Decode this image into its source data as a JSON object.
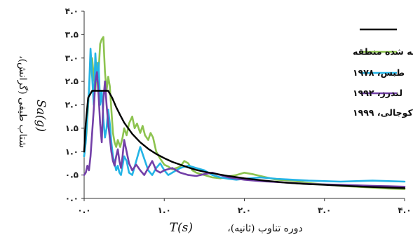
{
  "chart_data": {
    "type": "line",
    "xlabel_sym": "T(s)",
    "xlabel_text": "دوره تناوب (ثانیه)،",
    "ylabel_sym": "Sa(g)",
    "ylabel_text": "شتاب طیفی (گرانش)،",
    "xlim": [
      0,
      4
    ],
    "ylim": [
      0,
      4
    ],
    "x_ticks": [
      0,
      1,
      2,
      3,
      4
    ],
    "x_tick_labels": [
      "۰.۰",
      "۱.۰",
      "۲.۰",
      "۳.۰",
      "۴.۰"
    ],
    "y_ticks": [
      0,
      0.5,
      1,
      1.5,
      2,
      2.5,
      3,
      3.5,
      4
    ],
    "y_tick_labels": [
      "۰.۰",
      "۰.۵",
      "۱.۰",
      "۱.۵",
      "۲.۰",
      "۲.۵",
      "۳.۰",
      "۳.۵",
      "۴.۰"
    ],
    "grid": false,
    "legend_position": "top-right",
    "series": [
      {
        "name": "",
        "color": "#000000",
        "x": [
          0.0,
          0.02,
          0.05,
          0.1,
          0.15,
          0.2,
          0.25,
          0.3,
          0.35,
          0.4,
          0.45,
          0.5,
          0.6,
          0.7,
          0.8,
          0.9,
          1.0,
          1.1,
          1.2,
          1.3,
          1.4,
          1.5,
          1.6,
          1.8,
          2.0,
          2.25,
          2.5,
          2.75,
          3.0,
          3.25,
          3.5,
          3.75,
          4.0
        ],
        "y": [
          1.0,
          1.6,
          2.15,
          2.3,
          2.3,
          2.3,
          2.3,
          2.3,
          2.15,
          1.95,
          1.78,
          1.62,
          1.38,
          1.2,
          1.06,
          0.95,
          0.86,
          0.78,
          0.72,
          0.66,
          0.61,
          0.57,
          0.54,
          0.48,
          0.43,
          0.38,
          0.34,
          0.31,
          0.29,
          0.27,
          0.25,
          0.235,
          0.22
        ]
      },
      {
        "name": "طیف بزرگ‌ترین زلزله در نظر گرفته شده منطقه",
        "color": "#8dc34f",
        "x": [
          0.0,
          0.03,
          0.06,
          0.08,
          0.1,
          0.12,
          0.14,
          0.16,
          0.18,
          0.2,
          0.22,
          0.24,
          0.26,
          0.28,
          0.3,
          0.32,
          0.34,
          0.36,
          0.38,
          0.4,
          0.42,
          0.45,
          0.48,
          0.5,
          0.53,
          0.56,
          0.6,
          0.63,
          0.66,
          0.7,
          0.73,
          0.76,
          0.8,
          0.83,
          0.86,
          0.9,
          0.95,
          1.0,
          1.05,
          1.1,
          1.15,
          1.2,
          1.25,
          1.3,
          1.35,
          1.4,
          1.5,
          1.6,
          1.7,
          1.8,
          1.9,
          2.0,
          2.1,
          2.2,
          2.4,
          2.6,
          2.8,
          3.0,
          3.2,
          3.4,
          3.6,
          3.8,
          4.0
        ],
        "y": [
          0.9,
          1.4,
          2.3,
          2.9,
          3.0,
          2.6,
          2.3,
          2.9,
          2.7,
          3.3,
          3.4,
          3.45,
          2.7,
          2.3,
          2.6,
          2.4,
          1.9,
          1.4,
          1.2,
          1.1,
          1.25,
          1.1,
          1.3,
          1.5,
          1.35,
          1.6,
          1.75,
          1.5,
          1.6,
          1.4,
          1.55,
          1.35,
          1.25,
          1.4,
          1.3,
          1.0,
          0.85,
          0.72,
          0.68,
          0.62,
          0.65,
          0.68,
          0.8,
          0.75,
          0.6,
          0.55,
          0.5,
          0.45,
          0.43,
          0.47,
          0.5,
          0.55,
          0.52,
          0.48,
          0.4,
          0.38,
          0.33,
          0.3,
          0.27,
          0.25,
          0.23,
          0.21,
          0.2
        ]
      },
      {
        "name": "طبس، ۱۹۷۸",
        "color": "#24b4e6",
        "x": [
          0.0,
          0.02,
          0.04,
          0.06,
          0.08,
          0.1,
          0.12,
          0.14,
          0.16,
          0.18,
          0.2,
          0.22,
          0.24,
          0.26,
          0.28,
          0.3,
          0.32,
          0.34,
          0.36,
          0.38,
          0.4,
          0.42,
          0.44,
          0.46,
          0.48,
          0.5,
          0.53,
          0.56,
          0.6,
          0.65,
          0.7,
          0.75,
          0.8,
          0.85,
          0.9,
          0.95,
          1.0,
          1.05,
          1.1,
          1.15,
          1.2,
          1.3,
          1.4,
          1.5,
          1.6,
          1.7,
          1.8,
          1.9,
          2.0,
          2.2,
          2.4,
          2.6,
          2.8,
          3.0,
          3.2,
          3.4,
          3.6,
          3.8,
          4.0
        ],
        "y": [
          0.9,
          1.2,
          1.8,
          2.3,
          3.2,
          2.6,
          2.0,
          3.1,
          2.5,
          2.9,
          2.0,
          2.3,
          1.7,
          1.3,
          1.5,
          1.9,
          1.6,
          1.2,
          0.9,
          0.75,
          0.6,
          0.7,
          0.55,
          0.5,
          0.7,
          0.9,
          0.8,
          0.55,
          0.5,
          0.8,
          1.1,
          0.85,
          0.6,
          0.5,
          0.65,
          0.75,
          0.6,
          0.5,
          0.55,
          0.6,
          0.65,
          0.7,
          0.65,
          0.6,
          0.5,
          0.45,
          0.42,
          0.4,
          0.42,
          0.45,
          0.42,
          0.4,
          0.38,
          0.37,
          0.36,
          0.37,
          0.38,
          0.37,
          0.36
        ]
      },
      {
        "name": "لندرز، ۱۹۹۲",
        "color": "#7340a8",
        "x": [
          0.0,
          0.02,
          0.04,
          0.06,
          0.08,
          0.1,
          0.12,
          0.14,
          0.16,
          0.18,
          0.2,
          0.22,
          0.24,
          0.26,
          0.28,
          0.3,
          0.32,
          0.34,
          0.36,
          0.38,
          0.4,
          0.42,
          0.44,
          0.46,
          0.48,
          0.5,
          0.53,
          0.56,
          0.6,
          0.65,
          0.7,
          0.75,
          0.8,
          0.85,
          0.9,
          0.95,
          1.0,
          1.1,
          1.2,
          1.3,
          1.4,
          1.5,
          1.6,
          1.8,
          2.0,
          2.2,
          2.4,
          2.6,
          2.8,
          3.0,
          3.2,
          3.4,
          3.6,
          3.8,
          4.0
        ],
        "y": [
          0.5,
          0.55,
          0.7,
          0.6,
          0.9,
          1.4,
          1.9,
          2.5,
          2.7,
          2.2,
          1.6,
          1.2,
          2.1,
          2.5,
          2.0,
          1.6,
          1.3,
          1.0,
          0.8,
          0.7,
          0.9,
          1.05,
          0.8,
          0.65,
          0.9,
          1.25,
          1.0,
          0.75,
          0.6,
          0.72,
          0.6,
          0.5,
          0.65,
          0.8,
          0.6,
          0.55,
          0.6,
          0.65,
          0.55,
          0.5,
          0.48,
          0.52,
          0.55,
          0.45,
          0.4,
          0.37,
          0.35,
          0.33,
          0.31,
          0.3,
          0.29,
          0.28,
          0.27,
          0.26,
          0.25
        ]
      },
      {
        "name": "کوجالی، ۱۹۹۹",
        "color": "#000000",
        "hidden_line": true,
        "x": [],
        "y": []
      }
    ]
  }
}
